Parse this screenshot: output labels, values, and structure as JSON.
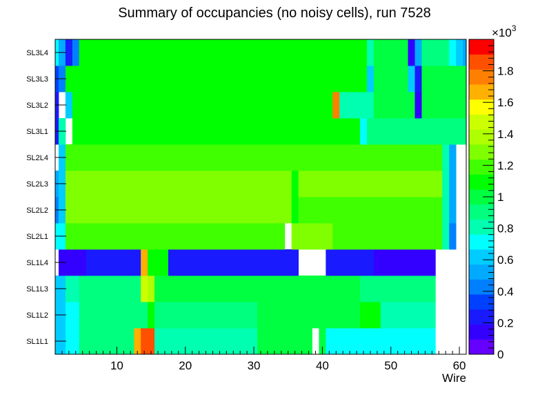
{
  "chart_data": {
    "type": "heatmap",
    "title": "Summary of occupancies (no noisy cells), run 7528",
    "xlabel": "Wire",
    "ylabel": "",
    "x_range": [
      1,
      61
    ],
    "xticks": [
      10,
      20,
      30,
      40,
      50,
      60
    ],
    "ylabels": [
      "SL1L1",
      "SL1L2",
      "SL1L3",
      "SL1L4",
      "SL2L1",
      "SL2L2",
      "SL2L3",
      "SL2L4",
      "SL3L1",
      "SL3L2",
      "SL3L3",
      "SL3L4"
    ],
    "colorbar": {
      "min": 0,
      "max": 2000,
      "multiplier": "×10",
      "exponent": "3",
      "ticks": [
        0,
        200,
        400,
        600,
        800,
        1000,
        1200,
        1400,
        1600,
        1800
      ],
      "tick_labels": [
        "0",
        "0.2",
        "0.4",
        "0.6",
        "0.8",
        "1",
        "1.2",
        "1.4",
        "1.6",
        "1.8"
      ],
      "palette": [
        "#6600ff",
        "#3300ff",
        "#1a1aff",
        "#0040ff",
        "#0080ff",
        "#00aaff",
        "#00ccff",
        "#00ffff",
        "#00ffb0",
        "#00ff7f",
        "#00ff40",
        "#00ff00",
        "#40ff00",
        "#80ff00",
        "#b0ff00",
        "#ccff00",
        "#ffff00",
        "#ffb000",
        "#ff8000",
        "#ff5000",
        "#ff0000"
      ]
    },
    "rows": [
      {
        "layer": "SL1L1",
        "segments": [
          [
            1,
            2,
            600
          ],
          [
            3,
            4,
            700
          ],
          [
            5,
            12,
            870
          ],
          [
            13,
            13,
            1650
          ],
          [
            14,
            14,
            1900
          ],
          [
            15,
            15,
            1850
          ],
          [
            16,
            30,
            850
          ],
          [
            31,
            38,
            1000
          ],
          [
            39,
            39,
            null
          ],
          [
            40,
            40,
            1000
          ],
          [
            41,
            56,
            750
          ],
          [
            57,
            61,
            null
          ]
        ]
      },
      {
        "layer": "SL1L2",
        "segments": [
          [
            1,
            2,
            660
          ],
          [
            3,
            4,
            750
          ],
          [
            5,
            14,
            900
          ],
          [
            15,
            15,
            1050
          ],
          [
            16,
            30,
            900
          ],
          [
            31,
            45,
            1000
          ],
          [
            46,
            48,
            1100
          ],
          [
            49,
            56,
            820
          ],
          [
            57,
            61,
            null
          ]
        ]
      },
      {
        "layer": "SL1L3",
        "segments": [
          [
            1,
            2,
            600
          ],
          [
            3,
            4,
            800
          ],
          [
            5,
            13,
            930
          ],
          [
            14,
            14,
            1500
          ],
          [
            15,
            15,
            1350
          ],
          [
            16,
            30,
            980
          ],
          [
            31,
            45,
            1020
          ],
          [
            46,
            56,
            880
          ],
          [
            57,
            61,
            null
          ]
        ]
      },
      {
        "layer": "SL1L4",
        "segments": [
          [
            1,
            1,
            null
          ],
          [
            2,
            5,
            170
          ],
          [
            6,
            13,
            240
          ],
          [
            14,
            14,
            1650
          ],
          [
            15,
            17,
            1050
          ],
          [
            18,
            36,
            240
          ],
          [
            37,
            40,
            null
          ],
          [
            41,
            47,
            240
          ],
          [
            48,
            56,
            170
          ],
          [
            57,
            61,
            null
          ]
        ]
      },
      {
        "layer": "SL2L1",
        "segments": [
          [
            1,
            2,
            700
          ],
          [
            3,
            34,
            1200
          ],
          [
            35,
            35,
            null
          ],
          [
            36,
            41,
            1250
          ],
          [
            42,
            57,
            1180
          ],
          [
            58,
            58,
            800
          ],
          [
            59,
            59,
            400
          ],
          [
            60,
            61,
            null
          ]
        ]
      },
      {
        "layer": "SL2L2",
        "segments": [
          [
            1,
            1,
            420
          ],
          [
            2,
            2,
            620
          ],
          [
            3,
            35,
            1250
          ],
          [
            36,
            36,
            1100
          ],
          [
            37,
            57,
            1230
          ],
          [
            58,
            58,
            800
          ],
          [
            59,
            59,
            480
          ],
          [
            60,
            61,
            null
          ]
        ]
      },
      {
        "layer": "SL2L3",
        "segments": [
          [
            1,
            1,
            480
          ],
          [
            2,
            2,
            660
          ],
          [
            3,
            35,
            1260
          ],
          [
            36,
            36,
            1050
          ],
          [
            37,
            57,
            1240
          ],
          [
            58,
            58,
            820
          ],
          [
            59,
            59,
            480
          ],
          [
            60,
            61,
            null
          ]
        ]
      },
      {
        "layer": "SL2L4",
        "segments": [
          [
            1,
            1,
            null
          ],
          [
            2,
            2,
            620
          ],
          [
            3,
            57,
            1220
          ],
          [
            58,
            58,
            800
          ],
          [
            59,
            59,
            480
          ],
          [
            60,
            61,
            null
          ]
        ]
      },
      {
        "layer": "SL3L1",
        "segments": [
          [
            1,
            1,
            200
          ],
          [
            2,
            2,
            850
          ],
          [
            3,
            3,
            null
          ],
          [
            4,
            45,
            1050
          ],
          [
            46,
            46,
            700
          ],
          [
            47,
            61,
            950
          ],
          [
            62,
            62,
            null
          ]
        ]
      },
      {
        "layer": "SL3L2",
        "segments": [
          [
            1,
            1,
            250
          ],
          [
            2,
            2,
            null
          ],
          [
            3,
            3,
            600
          ],
          [
            4,
            41,
            1050
          ],
          [
            42,
            42,
            1750
          ],
          [
            43,
            47,
            850
          ],
          [
            48,
            53,
            1000
          ],
          [
            54,
            54,
            150
          ],
          [
            55,
            61,
            980
          ]
        ]
      },
      {
        "layer": "SL3L3",
        "segments": [
          [
            1,
            1,
            300
          ],
          [
            2,
            2,
            450
          ],
          [
            3,
            46,
            1080
          ],
          [
            47,
            47,
            600
          ],
          [
            48,
            52,
            1000
          ],
          [
            53,
            53,
            600
          ],
          [
            54,
            54,
            250
          ],
          [
            55,
            61,
            1000
          ]
        ]
      },
      {
        "layer": "SL3L4",
        "segments": [
          [
            1,
            1,
            700
          ],
          [
            2,
            2,
            550
          ],
          [
            3,
            3,
            250
          ],
          [
            4,
            4,
            420
          ],
          [
            5,
            46,
            1080
          ],
          [
            47,
            47,
            800
          ],
          [
            48,
            52,
            1000
          ],
          [
            53,
            53,
            100
          ],
          [
            54,
            54,
            500
          ],
          [
            55,
            58,
            950
          ],
          [
            59,
            59,
            700
          ],
          [
            60,
            60,
            650
          ],
          [
            61,
            61,
            550
          ]
        ]
      }
    ]
  }
}
